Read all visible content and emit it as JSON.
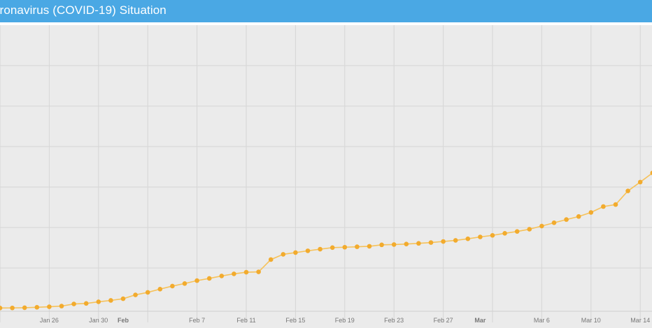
{
  "header": {
    "title": "oronavirus (COVID-19) Situation",
    "background": "#4aa8e4"
  },
  "chart_data": {
    "type": "line",
    "title": "",
    "xlabel": "",
    "ylabel": "",
    "grid": true,
    "colors": {
      "line": "#f6c25a",
      "marker": "#f2ab2e",
      "grid": "#d6d6d6",
      "background": "#ebebeb"
    },
    "x_ticks": [
      {
        "date": "2020-01-26",
        "label": "Jan 26",
        "bold": false
      },
      {
        "date": "2020-01-30",
        "label": "Jan 30",
        "bold": false
      },
      {
        "date": "2020-02-01",
        "label": "Feb",
        "bold": true
      },
      {
        "date": "2020-02-07",
        "label": "Feb 7",
        "bold": false
      },
      {
        "date": "2020-02-11",
        "label": "Feb 11",
        "bold": false
      },
      {
        "date": "2020-02-15",
        "label": "Feb 15",
        "bold": false
      },
      {
        "date": "2020-02-19",
        "label": "Feb 19",
        "bold": false
      },
      {
        "date": "2020-02-23",
        "label": "Feb 23",
        "bold": false
      },
      {
        "date": "2020-02-27",
        "label": "Feb 27",
        "bold": false
      },
      {
        "date": "2020-03-01",
        "label": "Mar",
        "bold": true
      },
      {
        "date": "2020-03-06",
        "label": "Mar 6",
        "bold": false
      },
      {
        "date": "2020-03-10",
        "label": "Mar 10",
        "bold": false
      },
      {
        "date": "2020-03-14",
        "label": "Mar 14",
        "bold": false
      }
    ],
    "ylim": [
      0,
      350000
    ],
    "x": [
      "2020-01-22",
      "2020-01-23",
      "2020-01-24",
      "2020-01-25",
      "2020-01-26",
      "2020-01-27",
      "2020-01-28",
      "2020-01-29",
      "2020-01-30",
      "2020-01-31",
      "2020-02-01",
      "2020-02-02",
      "2020-02-03",
      "2020-02-04",
      "2020-02-05",
      "2020-02-06",
      "2020-02-07",
      "2020-02-08",
      "2020-02-09",
      "2020-02-10",
      "2020-02-11",
      "2020-02-12",
      "2020-02-13",
      "2020-02-14",
      "2020-02-15",
      "2020-02-16",
      "2020-02-17",
      "2020-02-18",
      "2020-02-19",
      "2020-02-20",
      "2020-02-21",
      "2020-02-22",
      "2020-02-23",
      "2020-02-24",
      "2020-02-25",
      "2020-02-26",
      "2020-02-27",
      "2020-02-28",
      "2020-02-29",
      "2020-03-01",
      "2020-03-02",
      "2020-03-03",
      "2020-03-04",
      "2020-03-05",
      "2020-03-06",
      "2020-03-07",
      "2020-03-08",
      "2020-03-09",
      "2020-03-10",
      "2020-03-11",
      "2020-03-12",
      "2020-03-13",
      "2020-03-14",
      "2020-03-15",
      "2020-03-16",
      "2020-03-17",
      "2020-03-18"
    ],
    "series": [
      {
        "values": [
          555,
          654,
          941,
          1434,
          2118,
          2927,
          5578,
          6166,
          8234,
          9927,
          12038,
          16787,
          19881,
          23892,
          27635,
          30794,
          34391,
          37120,
          40150,
          42762,
          44802,
          45221,
          60368,
          66885,
          69030,
          71224,
          73258,
          75136,
          75639,
          76197,
          76819,
          78572,
          78958,
          79561,
          80406,
          81388,
          82746,
          84112,
          86011,
          88369,
          90306,
          92840,
          95120,
          97886,
          101801,
          105847,
          109821,
          113590,
          118620,
          125875,
          128352,
          145205,
          156101,
          167454,
          181574,
          197102,
          214821
        ]
      }
    ]
  }
}
